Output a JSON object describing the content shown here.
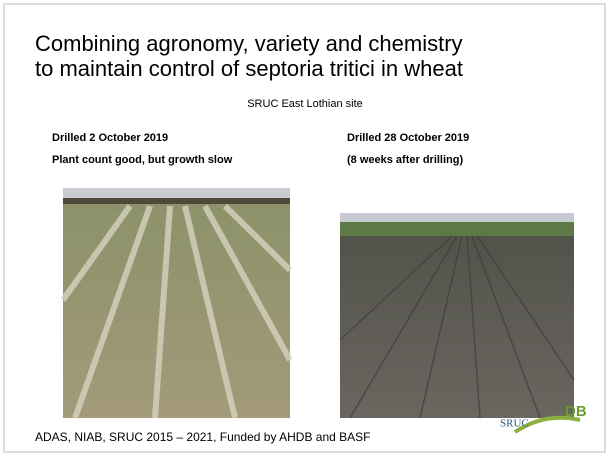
{
  "slide": {
    "title": [
      "Combining agronomy, variety and chemistry",
      "to maintain control of septoria tritici in wheat"
    ],
    "subtitle": "SRUC East Lothian site",
    "left": {
      "captions": [
        "Drilled 2 October 2019",
        "Plant count good, but growth slow"
      ]
    },
    "right": {
      "captions": [
        "Drilled 28 October 2019",
        "(8 weeks after drilling)"
      ]
    },
    "footer": "ADAS, NIAB, SRUC 2015 – 2021, Funded by AHDB and BASF",
    "logos": [
      "SRUC",
      "DB"
    ]
  }
}
